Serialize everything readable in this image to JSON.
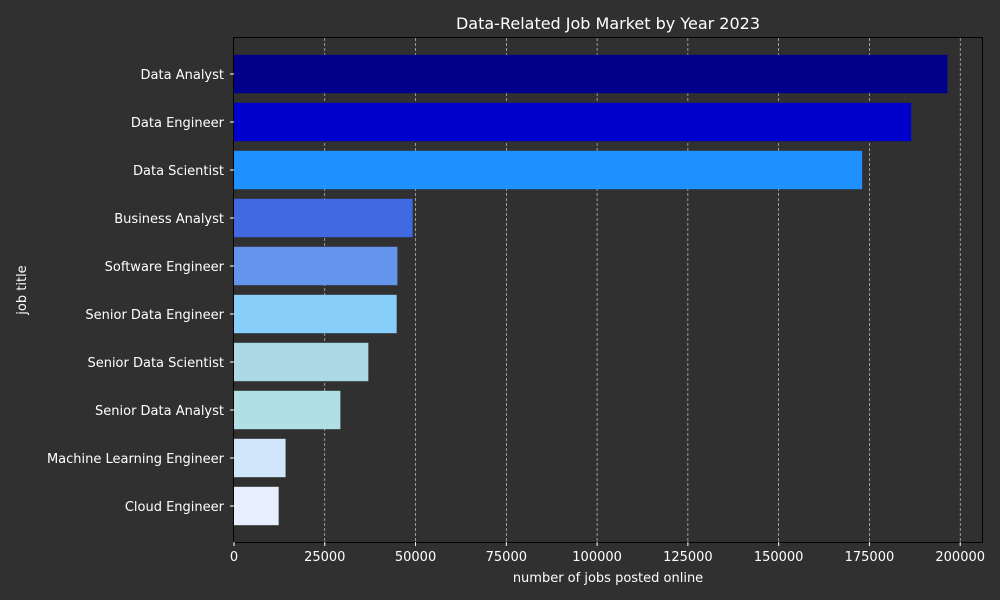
{
  "chart_data": {
    "type": "bar",
    "orientation": "horizontal",
    "title": "Data-Related Job Market by Year 2023",
    "xlabel": "number of jobs posted online",
    "ylabel": "job title",
    "xlim": [
      0,
      206000
    ],
    "xticks": [
      0,
      25000,
      50000,
      75000,
      100000,
      125000,
      150000,
      175000,
      200000
    ],
    "grid": {
      "x": true,
      "y": false,
      "style": "dashed",
      "color": "#ffffff"
    },
    "background": "#303030",
    "categories": [
      "Data Analyst",
      "Data Engineer",
      "Data Scientist",
      "Business Analyst",
      "Software Engineer",
      "Senior Data Engineer",
      "Senior Data Scientist",
      "Senior Data Analyst",
      "Machine Learning Engineer",
      "Cloud Engineer"
    ],
    "values": [
      196500,
      186500,
      173000,
      49200,
      45000,
      44800,
      37000,
      29300,
      14200,
      12300
    ],
    "colors": [
      "#00008b",
      "#0000cd",
      "#1e90ff",
      "#4169e1",
      "#6495ed",
      "#87cefa",
      "#add8e6",
      "#b0e0e6",
      "#d0e6fb",
      "#e6f0fc"
    ]
  }
}
